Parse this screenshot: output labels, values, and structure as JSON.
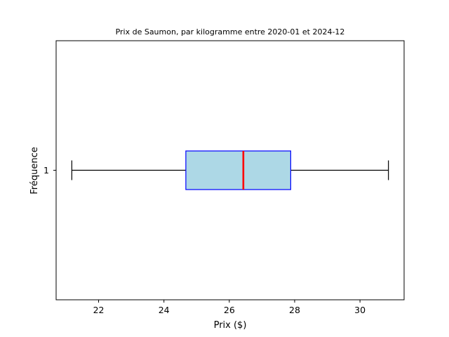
{
  "chart_data": {
    "type": "boxplot",
    "title": "Prix de Saumon, par kilogramme entre 2020-01 et 2024-12",
    "xlabel": "Prix ($)",
    "ylabel": "Fréquence",
    "orientation": "horizontal",
    "xlim": [
      20.7,
      31.35
    ],
    "xticks": [
      22,
      24,
      26,
      28,
      30
    ],
    "yticks": [
      "1"
    ],
    "grid": false,
    "series": [
      {
        "category": "1",
        "whisker_low": 21.18,
        "q1": 24.67,
        "median": 26.43,
        "q3": 27.88,
        "whisker_high": 30.87
      }
    ],
    "colors": {
      "box_fill": "#add8e6",
      "box_edge": "#0000ff",
      "median": "#ff0000",
      "whisker": "#000000"
    }
  }
}
